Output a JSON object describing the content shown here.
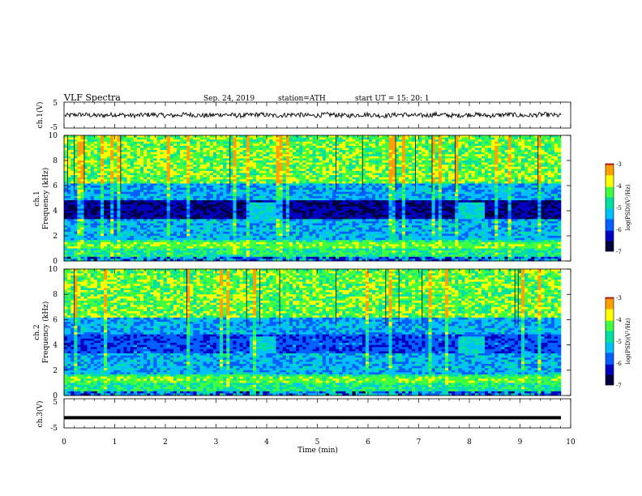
{
  "header": {
    "title": "VLF Spectra",
    "date": "Sep. 24, 2019",
    "station": "station=ATH",
    "start": "start UT = 15: 20: 1"
  },
  "chart_data": [
    {
      "type": "line",
      "id": "ch1-waveform",
      "ylabel": "ch.1(V)",
      "ylim": [
        -5,
        5
      ],
      "yticks": [
        "5",
        "-5"
      ],
      "xlim": [
        0,
        10
      ],
      "note_values": "continuous noisy waveform centered near 0 V with amplitude about ±1 V"
    },
    {
      "type": "heatmap",
      "id": "ch1-spectrogram",
      "ylabel": "ch.1\nFrequency (kHz)",
      "ylim": [
        0,
        10
      ],
      "yticks": [
        "0",
        "2",
        "4",
        "6",
        "8",
        "10"
      ],
      "xlim": [
        0,
        10
      ],
      "colorbar": {
        "label": "log(PSD)(V²/Hz)",
        "min": -7,
        "max": -3,
        "ticks": [
          "-3",
          "-4",
          "-5",
          "-6",
          "-7"
        ]
      }
    },
    {
      "type": "heatmap",
      "id": "ch2-spectrogram",
      "ylabel": "ch.2\nFrequency (kHz)",
      "ylim": [
        0,
        10
      ],
      "yticks": [
        "0",
        "2",
        "4",
        "6",
        "8",
        "10"
      ],
      "xlim": [
        0,
        10
      ],
      "colorbar": {
        "label": "log(PSD)(V²/Hz)",
        "min": -7,
        "max": -3,
        "ticks": [
          "-3",
          "-4",
          "-5",
          "-6",
          "-7"
        ]
      }
    },
    {
      "type": "line",
      "id": "ch3-waveform",
      "ylabel": "ch.3(V)",
      "ylim": [
        -5,
        5
      ],
      "yticks": [
        "5",
        "-5"
      ],
      "xlim": [
        0,
        10
      ],
      "xlabel": "Time (min)",
      "xticks": [
        "0",
        "1",
        "2",
        "3",
        "4",
        "5",
        "6",
        "7",
        "8",
        "9",
        "10"
      ],
      "y_constant": -1.5
    }
  ],
  "colors": {
    "palette": [
      "#000040",
      "#0000c0",
      "#0060ff",
      "#00c0ff",
      "#00e0a0",
      "#40ff40",
      "#ffff00",
      "#ffa000",
      "#ff2000",
      "#ffffff"
    ]
  }
}
